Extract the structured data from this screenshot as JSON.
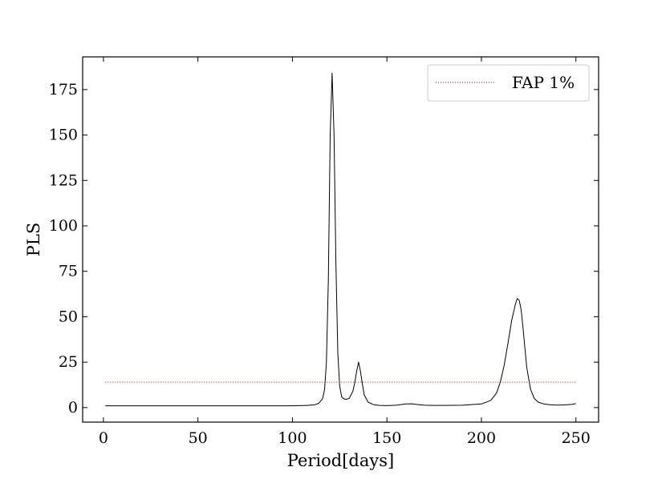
{
  "chart_data": {
    "type": "line",
    "xlabel": "Period[days]",
    "ylabel": "PLS",
    "xlim": [
      -11,
      262
    ],
    "ylim": [
      -8,
      193
    ],
    "xticks": [
      0,
      50,
      100,
      150,
      200,
      250
    ],
    "yticks": [
      0,
      25,
      50,
      75,
      100,
      125,
      150,
      175
    ],
    "grid": false,
    "legend": {
      "position": "top-right"
    },
    "series": [
      {
        "name": "",
        "color": "#000000",
        "style": "solid",
        "x": [
          1,
          20,
          40,
          60,
          80,
          100,
          108,
          112,
          114,
          116,
          117,
          118,
          119,
          120,
          121,
          122,
          123,
          124,
          125,
          126,
          127,
          128,
          130,
          132,
          133,
          134,
          135,
          136,
          137,
          138,
          140,
          143,
          146,
          150,
          155,
          160,
          163,
          167,
          170,
          175,
          180,
          190,
          200,
          205,
          208,
          210,
          212,
          214,
          216,
          218,
          219,
          220,
          221,
          222,
          223,
          224,
          226,
          228,
          230,
          233,
          236,
          240,
          245,
          248,
          250
        ],
        "y": [
          1,
          1,
          1,
          1,
          1,
          1,
          1.2,
          1.6,
          2.4,
          5,
          10,
          25,
          70,
          150,
          184,
          150,
          80,
          30,
          12,
          6,
          5,
          4.5,
          5,
          9,
          14,
          20,
          25,
          20,
          13,
          7,
          3,
          1.6,
          1.2,
          1.1,
          1.3,
          2,
          2.1,
          1.6,
          1.3,
          1.2,
          1.2,
          1.3,
          2,
          4,
          8,
          14,
          23,
          35,
          48,
          57,
          60,
          59,
          54,
          44,
          33,
          22,
          10,
          5,
          3,
          2,
          1.6,
          1.4,
          1.5,
          1.8,
          2.2
        ]
      },
      {
        "name": "FAP 1%",
        "color": "#cc0000",
        "style": "dotted",
        "x": [
          1,
          250
        ],
        "y": [
          14,
          14
        ]
      }
    ]
  }
}
